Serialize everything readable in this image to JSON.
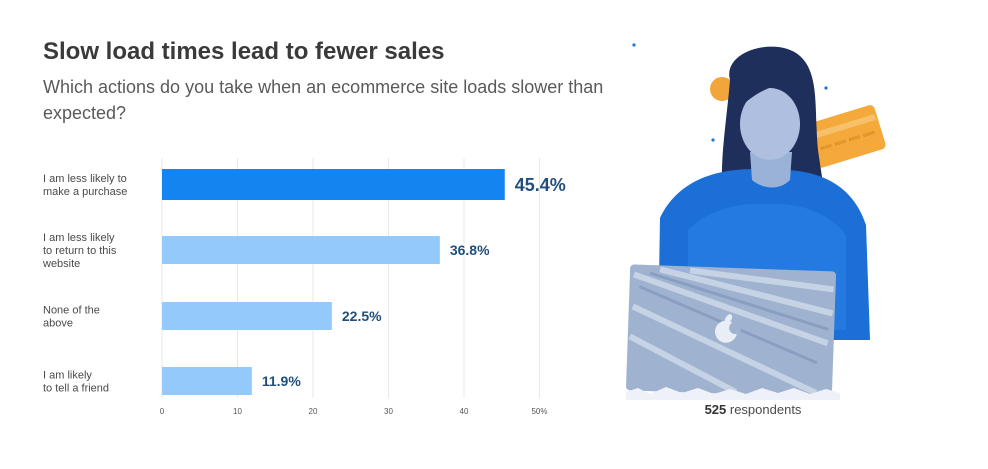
{
  "header": {
    "title": "Slow load times lead to fewer sales",
    "subtitle": "Which actions do you take when an ecommerce site loads slower than expected?"
  },
  "chart_data": {
    "type": "bar",
    "orientation": "horizontal",
    "categories": [
      [
        "I am less likely to",
        "make a purchase"
      ],
      [
        "I am less likely",
        "to return to this",
        "website"
      ],
      [
        "None of the",
        "above"
      ],
      [
        "I am likely",
        "to tell a friend"
      ]
    ],
    "values": [
      45.4,
      36.8,
      22.5,
      11.9
    ],
    "value_labels": [
      "45.4%",
      "36.8%",
      "22.5%",
      "11.9%"
    ],
    "xlim": [
      0,
      50
    ],
    "xticks": [
      "0",
      "10",
      "20",
      "30",
      "40",
      "50%"
    ],
    "colors": {
      "highlight": "#1384f0",
      "default": "#94c9fb"
    },
    "grid": "vertical"
  },
  "footer": {
    "count": "525",
    "label": " respondents"
  }
}
